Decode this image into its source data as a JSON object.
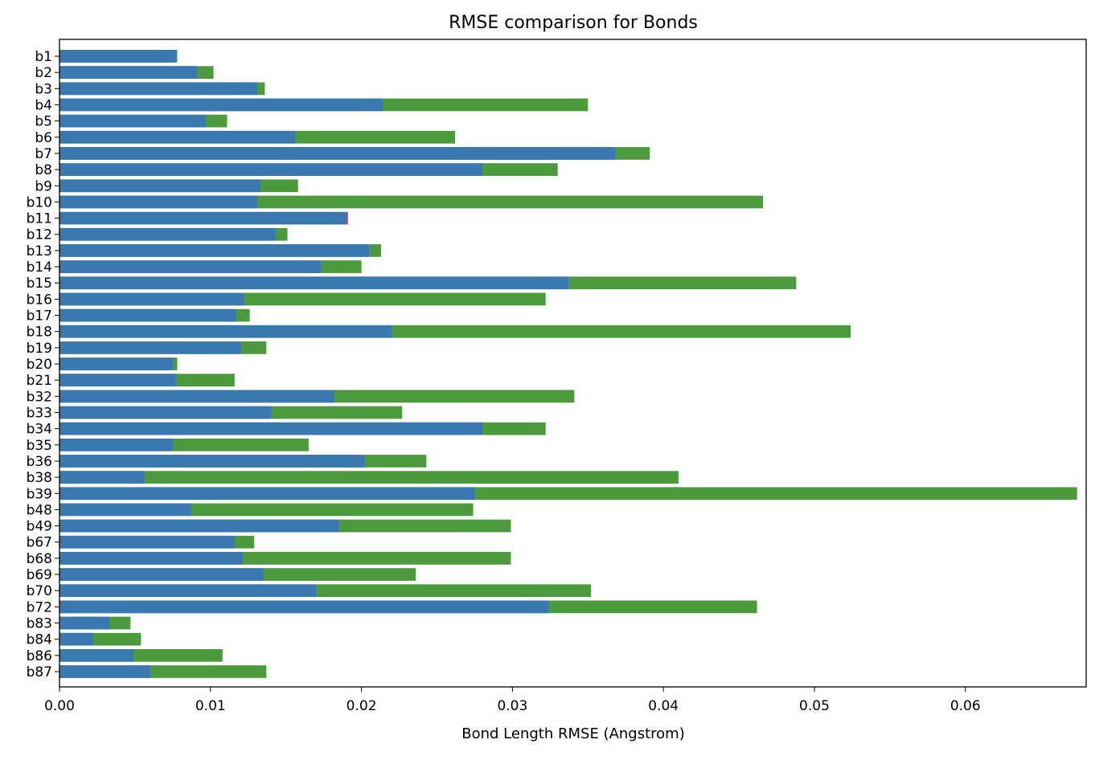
{
  "chart_data": {
    "type": "bar",
    "orientation": "horizontal",
    "title": "RMSE comparison for Bonds",
    "xlabel": "Bond Length RMSE (Angstrom)",
    "ylabel": "",
    "xlim": [
      0,
      0.068
    ],
    "xticks": [
      "0.00",
      "0.01",
      "0.02",
      "0.03",
      "0.04",
      "0.05",
      "0.06"
    ],
    "grid": false,
    "legend": "none",
    "colors": {
      "base": "#3a78b1",
      "worse": "#4d9a3e",
      "better": "#c9392f"
    },
    "categories": [
      "b1",
      "b2",
      "b3",
      "b4",
      "b5",
      "b6",
      "b7",
      "b8",
      "b9",
      "b10",
      "b11",
      "b12",
      "b13",
      "b14",
      "b15",
      "b16",
      "b17",
      "b18",
      "b19",
      "b20",
      "b21",
      "b32",
      "b33",
      "b34",
      "b35",
      "b36",
      "b38",
      "b39",
      "b48",
      "b49",
      "b67",
      "b68",
      "b69",
      "b70",
      "b72",
      "b83",
      "b84",
      "b86",
      "b87"
    ],
    "series": [
      {
        "values": [
          0.0077,
          0.0091,
          0.0131,
          0.0214,
          0.0097,
          0.0156,
          0.0368,
          0.028,
          0.0133,
          0.0131,
          0.0191,
          0.0143,
          0.0205,
          0.0173,
          0.0337,
          0.0122,
          0.0117,
          0.022,
          0.012,
          0.0075,
          0.0077,
          0.0182,
          0.014,
          0.028,
          0.0075,
          0.0202,
          0.0056,
          0.0275,
          0.0087,
          0.0185,
          0.0116,
          0.0121,
          0.0135,
          0.017,
          0.0324,
          0.0033,
          0.0022,
          0.0049,
          0.006
        ]
      },
      {
        "values": [
          0.0078,
          0.0102,
          0.0136,
          0.035,
          0.0111,
          0.0262,
          0.0391,
          0.033,
          0.0158,
          0.0466,
          0.019,
          0.0151,
          0.0213,
          0.02,
          0.0488,
          0.0322,
          0.0126,
          0.0524,
          0.0137,
          0.0078,
          0.0116,
          0.0341,
          0.0227,
          0.0322,
          0.0165,
          0.0243,
          0.041,
          0.0674,
          0.0274,
          0.0299,
          0.0129,
          0.0299,
          0.0236,
          0.0352,
          0.0462,
          0.0047,
          0.0054,
          0.0108,
          0.0137
        ]
      }
    ]
  }
}
